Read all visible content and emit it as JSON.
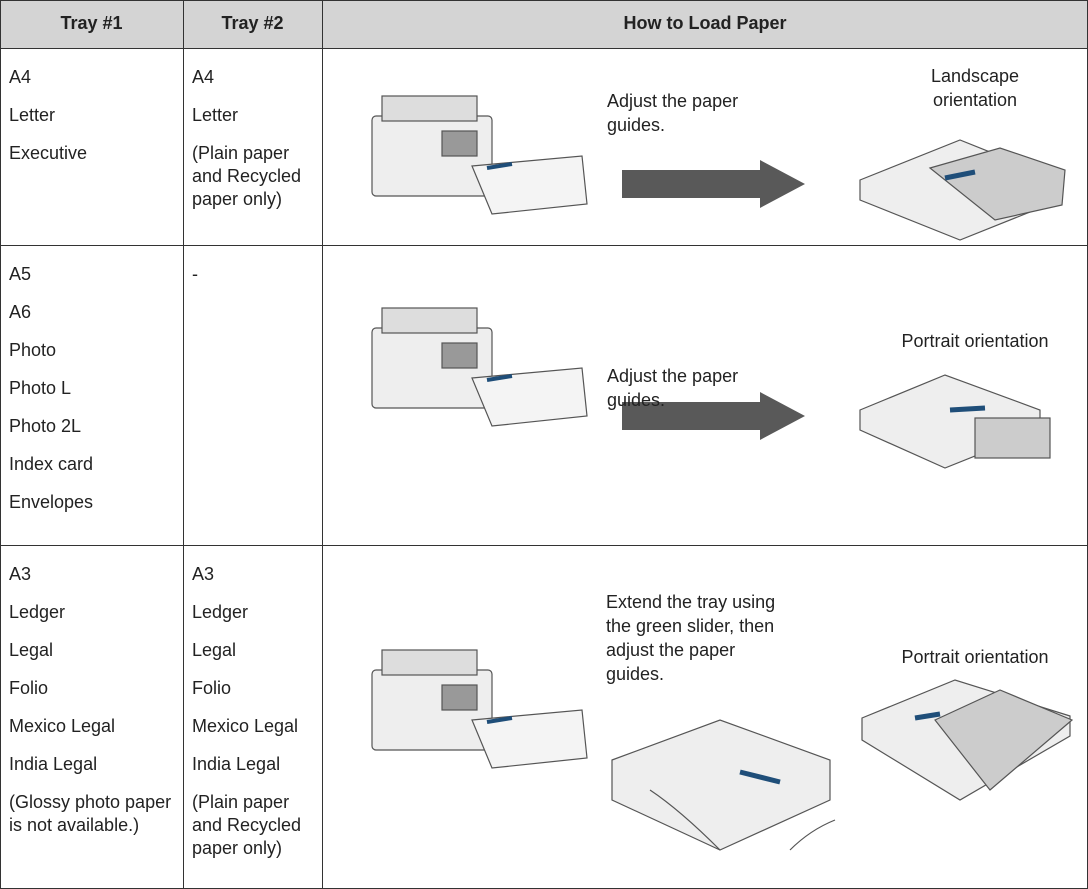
{
  "table": {
    "header": [
      "Tray #1",
      "Tray #2",
      "How to Load Paper"
    ],
    "rows": [
      {
        "tray1": [
          "A4",
          "Letter",
          "Executive"
        ],
        "tray2": [
          "A4",
          "Letter",
          "(Plain paper and Recycled paper only)"
        ],
        "instruction": "Adjust the paper guides.",
        "orientation": "Landscape orientation"
      },
      {
        "tray1": [
          "A5",
          "A6",
          "Photo",
          "Photo L",
          "Photo 2L",
          "Index card",
          "Envelopes"
        ],
        "tray2": [
          "-"
        ],
        "instruction": "Adjust the paper guides.",
        "orientation": "Portrait orientation"
      },
      {
        "tray1": [
          "A3",
          "Ledger",
          "Legal",
          "Folio",
          "Mexico Legal",
          "India Legal",
          "(Glossy photo paper is not available.)"
        ],
        "tray2": [
          "A3",
          "Ledger",
          "Legal",
          "Folio",
          "Mexico Legal",
          "India Legal",
          "(Plain paper and Recycled paper only)"
        ],
        "instruction": "Extend the tray using the green slider, then adjust the paper guides.",
        "orientation": "Portrait orientation"
      }
    ]
  }
}
